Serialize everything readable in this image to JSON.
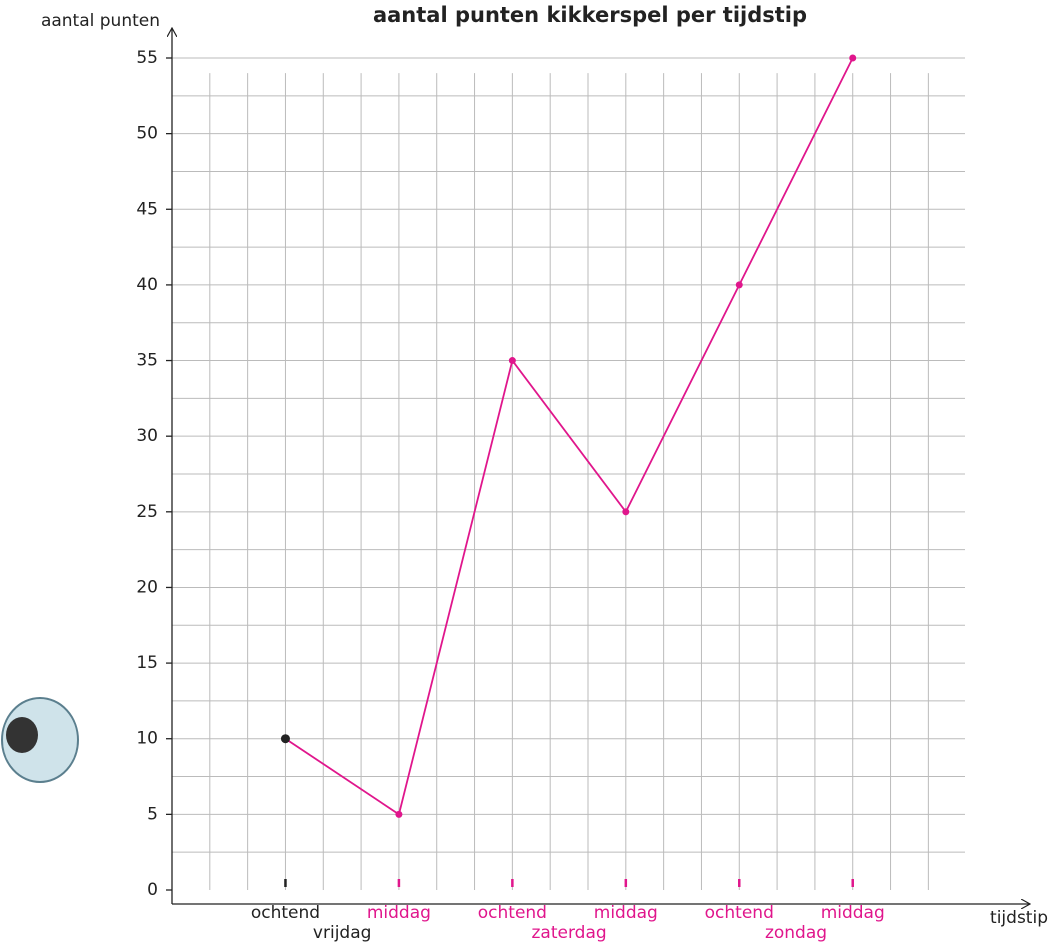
{
  "chart_data": {
    "type": "line",
    "title": "aantal punten kikkerspel per tijdstip",
    "y_label": "aantal punten",
    "x_label": "tijdstip",
    "categories": [
      "ochtend",
      "middag",
      "ochtend",
      "middag",
      "ochtend",
      "middag"
    ],
    "category_colors": [
      "#222222",
      "#e0168c",
      "#e0168c",
      "#e0168c",
      "#e0168c",
      "#e0168c"
    ],
    "groups": [
      {
        "label": "vrijdag",
        "color": "#222222"
      },
      {
        "label": "zaterdag",
        "color": "#e0168c"
      },
      {
        "label": "zondag",
        "color": "#e0168c"
      }
    ],
    "series": [
      {
        "color": "#e0168c",
        "marker_colors": [
          "#222222",
          "#e0168c",
          "#e0168c",
          "#e0168c",
          "#e0168c",
          "#e0168c"
        ],
        "values": [
          10,
          5,
          35,
          25,
          40,
          55
        ]
      }
    ],
    "ylim": [
      0,
      55
    ],
    "yticks": [
      0,
      5,
      10,
      15,
      20,
      25,
      30,
      35,
      40,
      45,
      50,
      55
    ],
    "grid": true
  }
}
